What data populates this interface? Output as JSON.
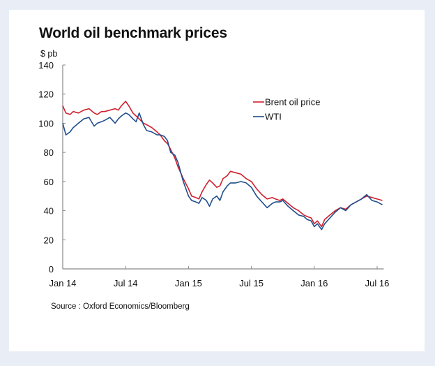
{
  "page": {
    "background": "#e9eef6",
    "card_background": "#ffffff"
  },
  "chart_data": {
    "type": "line",
    "title": "World oil benchmark prices",
    "ylabel": "$ pb",
    "xlabel": "",
    "ylim": [
      0,
      140
    ],
    "yticks": [
      0,
      20,
      40,
      60,
      80,
      100,
      120,
      140
    ],
    "xlim_months_from_jan14": [
      0,
      30.5
    ],
    "xticks": [
      {
        "label": "Jan 14",
        "month": 0
      },
      {
        "label": "Jul 14",
        "month": 6
      },
      {
        "label": "Jan 15",
        "month": 12
      },
      {
        "label": "Jul 15",
        "month": 18
      },
      {
        "label": "Jan 16",
        "month": 24
      },
      {
        "label": "Jul 16",
        "month": 30
      }
    ],
    "grid": false,
    "legend": {
      "placement": "top-right",
      "entries": [
        "Brent oil price",
        "WTI"
      ]
    },
    "source": "Source : Oxford Economics/Bloomberg",
    "series": [
      {
        "name": "Brent oil price",
        "color": "#d0202e",
        "x_months": [
          0,
          0.3,
          0.7,
          1.0,
          1.5,
          2.0,
          2.5,
          3.0,
          3.3,
          3.7,
          4.0,
          4.5,
          5.0,
          5.3,
          5.6,
          6.0,
          6.3,
          6.7,
          7.0,
          7.3,
          7.7,
          8.0,
          8.5,
          9.0,
          9.3,
          9.7,
          10.0,
          10.3,
          10.7,
          11.0,
          11.5,
          12.0,
          12.3,
          12.7,
          13.0,
          13.3,
          13.7,
          14.0,
          14.3,
          14.7,
          15.0,
          15.3,
          15.7,
          16.0,
          16.5,
          17.0,
          17.5,
          18.0,
          18.5,
          19.0,
          19.5,
          20.0,
          20.3,
          20.7,
          21.0,
          21.5,
          22.0,
          22.5,
          23.0,
          23.3,
          23.7,
          24.0,
          24.3,
          24.7,
          25.0,
          25.5,
          26.0,
          26.5,
          27.0,
          27.5,
          28.0,
          28.5,
          29.0,
          29.5,
          30.0,
          30.5
        ],
        "values": [
          112,
          107,
          106,
          108,
          107,
          109,
          110,
          107,
          106,
          108,
          108,
          109,
          110,
          109,
          112,
          115,
          112,
          107,
          105,
          103,
          100,
          99,
          97,
          94,
          92,
          88,
          86,
          82,
          76,
          70,
          62,
          55,
          50,
          49,
          48,
          53,
          58,
          61,
          59,
          56,
          57,
          62,
          64,
          67,
          66,
          65,
          62,
          60,
          55,
          51,
          48,
          49,
          48,
          47,
          48,
          45,
          42,
          40,
          37,
          36,
          35,
          31,
          33,
          29,
          34,
          37,
          40,
          42,
          41,
          44,
          46,
          48,
          50,
          49,
          48,
          47
        ]
      },
      {
        "name": "WTI",
        "color": "#1f4e8c",
        "x_months": [
          0,
          0.3,
          0.7,
          1.0,
          1.5,
          2.0,
          2.5,
          3.0,
          3.3,
          3.7,
          4.0,
          4.5,
          5.0,
          5.3,
          5.6,
          6.0,
          6.3,
          6.7,
          7.0,
          7.3,
          7.7,
          8.0,
          8.5,
          9.0,
          9.3,
          9.7,
          10.0,
          10.3,
          10.7,
          11.0,
          11.5,
          12.0,
          12.3,
          12.7,
          13.0,
          13.3,
          13.7,
          14.0,
          14.3,
          14.7,
          15.0,
          15.3,
          15.7,
          16.0,
          16.5,
          17.0,
          17.5,
          18.0,
          18.5,
          19.0,
          19.5,
          20.0,
          20.3,
          20.7,
          21.0,
          21.5,
          22.0,
          22.5,
          23.0,
          23.3,
          23.7,
          24.0,
          24.3,
          24.7,
          25.0,
          25.5,
          26.0,
          26.5,
          27.0,
          27.5,
          28.0,
          28.5,
          29.0,
          29.5,
          30.0,
          30.5
        ],
        "values": [
          100,
          92,
          94,
          97,
          100,
          103,
          104,
          98,
          100,
          101,
          102,
          104,
          100,
          103,
          105,
          107,
          106,
          103,
          101,
          107,
          99,
          95,
          94,
          92,
          92,
          91,
          88,
          80,
          78,
          73,
          60,
          50,
          47,
          46,
          45,
          49,
          47,
          43,
          48,
          50,
          47,
          53,
          57,
          59,
          59,
          60,
          59,
          56,
          50,
          46,
          42,
          45,
          46,
          46,
          47,
          43,
          40,
          37,
          36,
          34,
          33,
          29,
          31,
          27,
          31,
          35,
          39,
          42,
          40,
          44,
          46,
          48,
          51,
          47,
          46,
          44
        ]
      }
    ]
  }
}
